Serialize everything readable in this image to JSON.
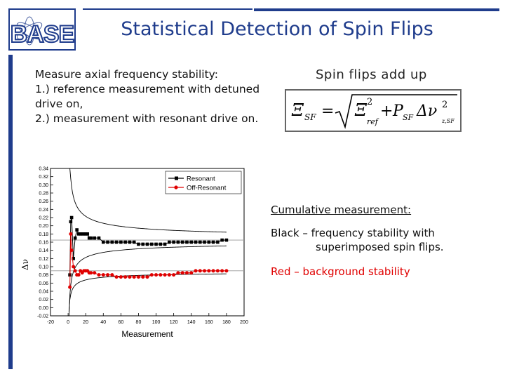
{
  "slide": {
    "title": "Statistical Detection of Spin Flips",
    "logo_text": "BASE",
    "intro": {
      "line1": "Measure axial frequency stability:",
      "line2": "1.) reference measurement with detuned drive on,",
      "line3": "2.) measurement with resonant drive on."
    },
    "right_heading": "Spin flips add up",
    "formula": {
      "lhs_symbol": "Ξ",
      "lhs_sub": "SF",
      "eq": "=",
      "term1_symbol": "Ξ",
      "term1_sub": "ref",
      "term1_sup": "2",
      "plus": "+",
      "term2_symbol": "P",
      "term2_sub": "SF",
      "term3_symbol": "Δν",
      "term3_sub": "z,SF",
      "term3_sup": "2"
    },
    "cumulative_label": "Cumulative measurement:",
    "black_desc_1": "Black – frequency stability with",
    "black_desc_2": "superimposed spin flips.",
    "red_desc": "Red – background stability",
    "colors": {
      "accent": "#1f3c8c",
      "red": "#e00000",
      "black": "#000000"
    }
  },
  "chart_data": {
    "type": "scatter",
    "xlabel": "Measurement",
    "ylabel": "Δν",
    "xlim": [
      -20,
      200
    ],
    "ylim": [
      -0.02,
      0.34
    ],
    "x_ticks": [
      "-20",
      "0",
      "20",
      "40",
      "60",
      "80",
      "100",
      "120",
      "140",
      "160",
      "180",
      "200"
    ],
    "y_ticks": [
      "-0.02",
      "0.00",
      "0.02",
      "0.04",
      "0.06",
      "0.08",
      "0.10",
      "0.12",
      "0.14",
      "0.16",
      "0.18",
      "0.20",
      "0.22",
      "0.24",
      "0.26",
      "0.28",
      "0.30",
      "0.32",
      "0.34"
    ],
    "legend": [
      "Resonant",
      "Off-Resonant"
    ],
    "legend_position": "top-right",
    "series": [
      {
        "name": "Resonant",
        "color": "#000000",
        "x": [
          2,
          3,
          4,
          6,
          8,
          10,
          12,
          14,
          16,
          18,
          20,
          22,
          24,
          26,
          30,
          35,
          40,
          45,
          50,
          55,
          60,
          65,
          70,
          75,
          80,
          85,
          90,
          95,
          100,
          105,
          110,
          115,
          120,
          125,
          130,
          135,
          140,
          145,
          150,
          155,
          160,
          165,
          170,
          175,
          180
        ],
        "y": [
          0.08,
          0.21,
          0.22,
          0.12,
          0.17,
          0.19,
          0.18,
          0.18,
          0.18,
          0.18,
          0.18,
          0.18,
          0.17,
          0.17,
          0.17,
          0.17,
          0.16,
          0.16,
          0.16,
          0.16,
          0.16,
          0.16,
          0.16,
          0.16,
          0.155,
          0.155,
          0.155,
          0.155,
          0.155,
          0.155,
          0.155,
          0.16,
          0.16,
          0.16,
          0.16,
          0.16,
          0.16,
          0.16,
          0.16,
          0.16,
          0.16,
          0.16,
          0.16,
          0.165,
          0.165
        ]
      },
      {
        "name": "Off-Resonant",
        "color": "#e00000",
        "x": [
          2,
          3,
          4,
          6,
          8,
          10,
          12,
          14,
          16,
          18,
          20,
          22,
          24,
          26,
          30,
          35,
          40,
          45,
          50,
          55,
          60,
          65,
          70,
          75,
          80,
          85,
          90,
          95,
          100,
          105,
          110,
          115,
          120,
          125,
          130,
          135,
          140,
          145,
          150,
          155,
          160,
          165,
          170,
          175,
          180
        ],
        "y": [
          0.05,
          0.18,
          0.14,
          0.1,
          0.09,
          0.08,
          0.08,
          0.09,
          0.085,
          0.09,
          0.09,
          0.09,
          0.085,
          0.085,
          0.085,
          0.08,
          0.08,
          0.08,
          0.08,
          0.075,
          0.075,
          0.075,
          0.075,
          0.075,
          0.075,
          0.075,
          0.075,
          0.08,
          0.08,
          0.08,
          0.08,
          0.08,
          0.08,
          0.085,
          0.085,
          0.085,
          0.085,
          0.09,
          0.09,
          0.09,
          0.09,
          0.09,
          0.09,
          0.09,
          0.09
        ]
      }
    ],
    "reference_lines": [
      0.165,
      0.09
    ]
  }
}
